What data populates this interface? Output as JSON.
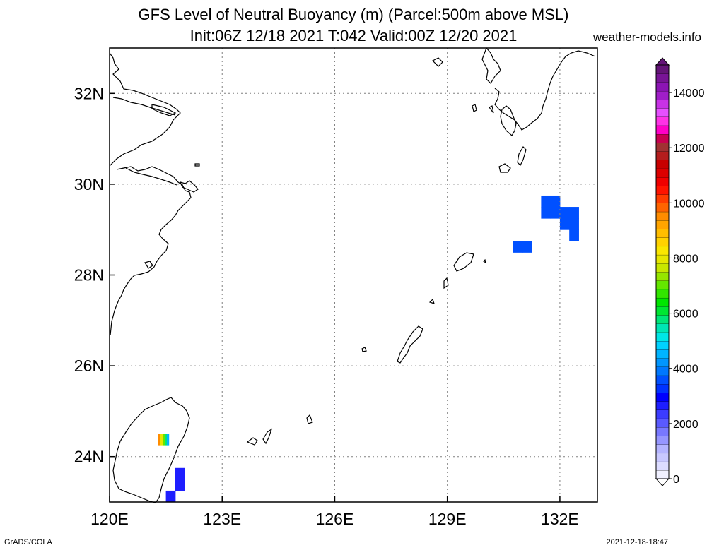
{
  "title": {
    "line1": "GFS Level of Neutral Buoyancy (m) (Parcel:500m above MSL)",
    "line2": "Init:06Z 12/18 2021 T:042 Valid:00Z 12/20 2021"
  },
  "site": "weather-models.info",
  "credits": {
    "left": "GrADS/COLA",
    "right": "2021-12-18-18:47"
  },
  "map": {
    "lon_range": [
      120,
      133
    ],
    "lat_range": [
      23,
      33
    ],
    "lon_ticks": [
      {
        "value": 120,
        "label": "120E"
      },
      {
        "value": 123,
        "label": "123E"
      },
      {
        "value": 126,
        "label": "126E"
      },
      {
        "value": 129,
        "label": "129E"
      },
      {
        "value": 132,
        "label": "132E"
      }
    ],
    "lat_ticks": [
      {
        "value": 24,
        "label": "24N"
      },
      {
        "value": 26,
        "label": "26N"
      },
      {
        "value": 28,
        "label": "28N"
      },
      {
        "value": 30,
        "label": "30N"
      },
      {
        "value": 32,
        "label": "32N"
      }
    ],
    "grid": true
  },
  "colorbar": {
    "min": 0,
    "max": 15000,
    "labels": [
      "0",
      "2000",
      "4000",
      "6000",
      "8000",
      "10000",
      "12000",
      "14000"
    ],
    "label_values": [
      0,
      2000,
      4000,
      6000,
      8000,
      10000,
      12000,
      14000
    ],
    "colors": [
      "#f0f0ff",
      "#dcdcff",
      "#c8c8ff",
      "#b4b4ff",
      "#9696ff",
      "#7878ff",
      "#5a5aff",
      "#3c3cff",
      "#1e1eff",
      "#0000ff",
      "#0032ff",
      "#0050ff",
      "#0078ff",
      "#0096ff",
      "#00b4ff",
      "#00d2ff",
      "#00e6e6",
      "#00e6b4",
      "#00e678",
      "#00e632",
      "#00e600",
      "#32e600",
      "#64e600",
      "#96e600",
      "#c8e600",
      "#e6e600",
      "#fae600",
      "#ffd200",
      "#ffbe00",
      "#ffa500",
      "#ff8c00",
      "#ff6400",
      "#ff3c00",
      "#ff1400",
      "#f00000",
      "#dc0000",
      "#c80000",
      "#b41e1e",
      "#a03232",
      "#c80050",
      "#ff00c8",
      "#ff32e6",
      "#e650ff",
      "#c832e6",
      "#a01ec8",
      "#8c14b4",
      "#781496",
      "#641478"
    ]
  },
  "shaded_cells": [
    {
      "lon": 131.5,
      "lat": 29.5,
      "value": 2400,
      "color": "#0050ff"
    },
    {
      "lon": 131.5,
      "lat": 29.25,
      "value": 2400,
      "color": "#0050ff"
    },
    {
      "lon": 131.75,
      "lat": 29.5,
      "value": 2400,
      "color": "#0050ff"
    },
    {
      "lon": 131.75,
      "lat": 29.25,
      "value": 2400,
      "color": "#0050ff"
    },
    {
      "lon": 132.0,
      "lat": 29.25,
      "value": 2400,
      "color": "#0050ff"
    },
    {
      "lon": 132.0,
      "lat": 29.0,
      "value": 2400,
      "color": "#0050ff"
    },
    {
      "lon": 132.25,
      "lat": 29.25,
      "value": 2400,
      "color": "#0050ff"
    },
    {
      "lon": 132.25,
      "lat": 29.0,
      "value": 2400,
      "color": "#0050ff"
    },
    {
      "lon": 132.25,
      "lat": 28.75,
      "value": 2400,
      "color": "#0050ff"
    },
    {
      "lon": 130.75,
      "lat": 28.5,
      "value": 2400,
      "color": "#0050ff"
    },
    {
      "lon": 131.0,
      "lat": 28.5,
      "value": 2400,
      "color": "#0050ff"
    },
    {
      "lon": 121.75,
      "lat": 23.5,
      "value": 1800,
      "color": "#1e1eff"
    },
    {
      "lon": 121.75,
      "lat": 23.25,
      "value": 1800,
      "color": "#1e1eff"
    },
    {
      "lon": 121.5,
      "lat": 23.0,
      "value": 1800,
      "color": "#1e1eff"
    }
  ]
}
